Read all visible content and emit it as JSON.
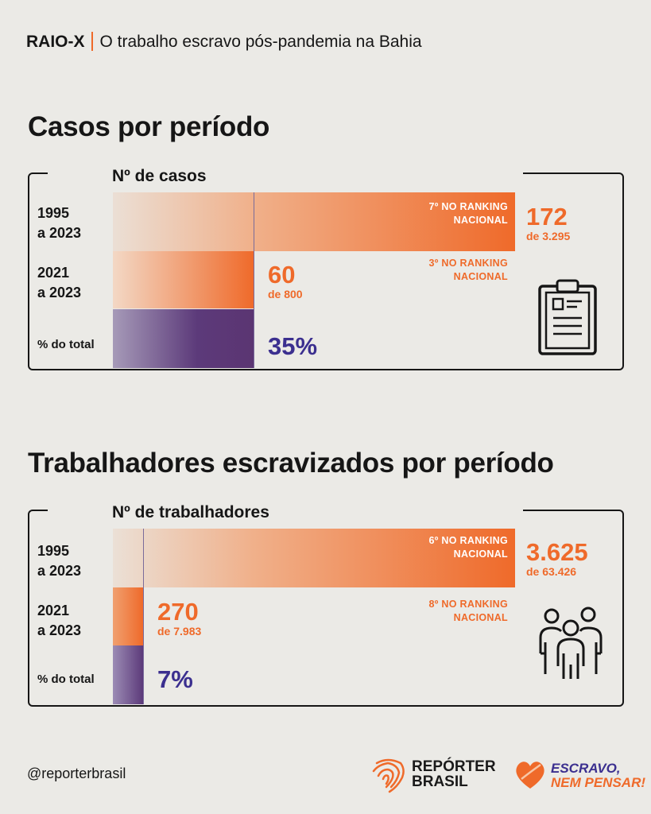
{
  "header": {
    "tag": "RAIO-X",
    "title": "O trabalho escravo pós-pandemia na Bahia"
  },
  "section1": {
    "title": "Casos por período",
    "sublabel": "Nº de casos",
    "rows": [
      {
        "label_line1": "1995",
        "label_line2": "a 2023",
        "rank_line1": "7º NO RANKING",
        "rank_line2": "NACIONAL",
        "value": "172",
        "of": "de 3.295"
      },
      {
        "label_line1": "2021",
        "label_line2": "a 2023",
        "rank_line1": "3º NO RANKING",
        "rank_line2": "NACIONAL",
        "value": "60",
        "of": "de 800"
      }
    ],
    "pct_label": "% do total",
    "pct_value": "35%"
  },
  "section2": {
    "title": "Trabalhadores escravizados por período",
    "sublabel": "Nº de trabalhadores",
    "rows": [
      {
        "label_line1": "1995",
        "label_line2": "a 2023",
        "rank_line1": "6º NO RANKING",
        "rank_line2": "NACIONAL",
        "value": "3.625",
        "of": "de 63.426"
      },
      {
        "label_line1": "2021",
        "label_line2": "a 2023",
        "rank_line1": "8º NO RANKING",
        "rank_line2": "NACIONAL",
        "value": "270",
        "of": "de 7.983"
      }
    ],
    "pct_label": "% do total",
    "pct_value": "7%"
  },
  "footer": {
    "handle": "@reporterbrasil",
    "logo1_line1": "REPÓRTER",
    "logo1_line2": "BRASIL",
    "logo2_line1": "ESCRAVO,",
    "logo2_line2": "NEM PENSAR!"
  },
  "colors": {
    "orange": "#ef6a2a",
    "purple": "#5c3a7a",
    "purple_text": "#3b2f8f",
    "background": "#ebeae6"
  },
  "icons": {
    "section1": "clipboard-icon",
    "section2": "group-of-people-icon",
    "logo1": "brazil-fingerprint-icon",
    "logo2": "heart-leaf-icon"
  },
  "chart_data": [
    {
      "type": "bar",
      "title": "Casos por período",
      "ylabel": "Nº de casos",
      "categories": [
        "1995 a 2023",
        "2021 a 2023"
      ],
      "values": [
        172,
        60
      ],
      "totals": [
        3295,
        800
      ],
      "rankings": [
        7,
        3
      ],
      "percent_of_total": 35
    },
    {
      "type": "bar",
      "title": "Trabalhadores escravizados por período",
      "ylabel": "Nº de trabalhadores",
      "categories": [
        "1995 a 2023",
        "2021 a 2023"
      ],
      "values": [
        3625,
        270
      ],
      "totals": [
        63426,
        7983
      ],
      "rankings": [
        6,
        8
      ],
      "percent_of_total": 7
    }
  ]
}
